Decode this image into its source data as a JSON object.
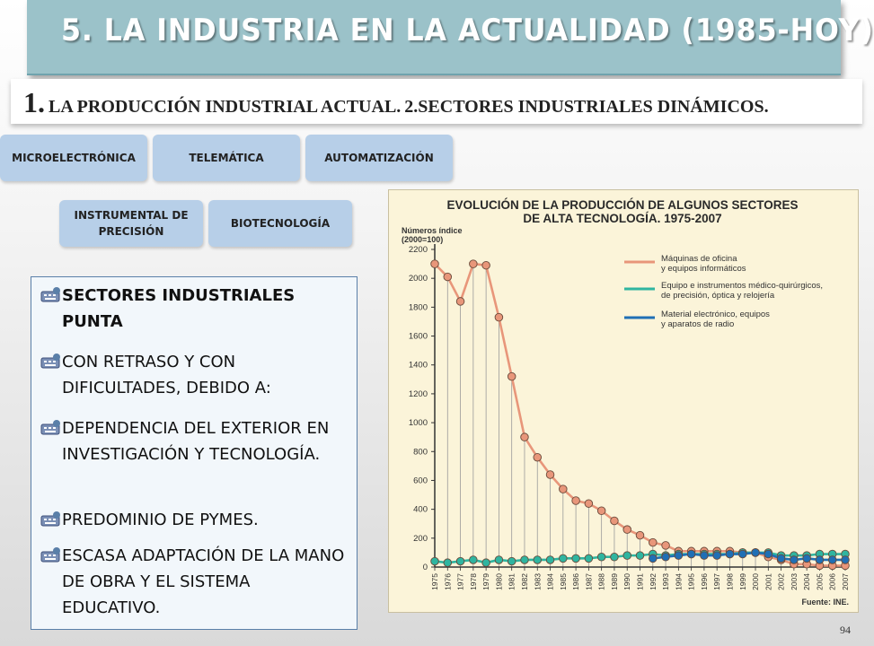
{
  "header": {
    "title": "5. LA INDUSTRIA EN LA ACTUALIDAD (1985-HOY)",
    "subtitle_num": "1.",
    "subtitle_part1": "LA PRODUCCIÓN INDUSTRIAL ACTUAL.",
    "subtitle_part2": "2.SECTORES INDUSTRIALES DINÁMICOS."
  },
  "sectors": [
    {
      "label": "MICROELECTRÓNICA"
    },
    {
      "label": "TELEMÁTICA"
    },
    {
      "label": "AUTOMATIZACIÓN"
    },
    {
      "label": "INSTRUMENTAL DE PRECISIÓN"
    },
    {
      "label": "BIOTECNOLOGÍA"
    }
  ],
  "bullets": [
    {
      "text": "SECTORES INDUSTRIALES PUNTA",
      "icon": "keyboard-icon"
    },
    {
      "text": "CON RETRASO Y CON DIFICULTADES, DEBIDO A:",
      "icon": "keyboard-icon"
    },
    {
      "text": "DEPENDENCIA DEL EXTERIOR EN INVESTIGACIÓN Y TECNOLOGÍA.",
      "icon": "keyboard-icon"
    },
    {
      "text": "PREDOMINIO DE PYMES.",
      "icon": "keyboard-icon"
    },
    {
      "text": "ESCASA ADAPTACIÓN DE LA MANO DE OBRA Y EL SISTEMA EDUCATIVO.",
      "icon": "keyboard-icon"
    }
  ],
  "page_number": "94",
  "chart_data": {
    "type": "line",
    "title": "EVOLUCIÓN DE LA PRODUCCIÓN DE ALGUNOS SECTORES DE ALTA TECNOLOGÍA. 1975-2007",
    "ylabel": "Números índice (2000=100)",
    "source": "Fuente: INE.",
    "ylim": [
      0,
      2200
    ],
    "yticks": [
      0,
      200,
      400,
      600,
      800,
      1000,
      1200,
      1400,
      1600,
      1800,
      2000,
      2200
    ],
    "x": [
      1975,
      1976,
      1977,
      1978,
      1979,
      1980,
      1981,
      1982,
      1983,
      1984,
      1985,
      1986,
      1987,
      1988,
      1989,
      1990,
      1991,
      1992,
      1993,
      1994,
      1995,
      1996,
      1997,
      1998,
      1999,
      2000,
      2001,
      2002,
      2003,
      2004,
      2005,
      2006,
      2007
    ],
    "series": [
      {
        "name": "Máquinas de oficina y equipos informáticos",
        "color": "#e8967a",
        "x": [
          1975,
          1976,
          1977,
          1978,
          1979,
          1980,
          1981,
          1982,
          1983,
          1984,
          1985,
          1986,
          1987,
          1988,
          1989,
          1990,
          1991,
          1992,
          1993,
          1994,
          1995,
          1996,
          1997,
          1998,
          1999,
          2000,
          2001,
          2002,
          2003,
          2004,
          2005,
          2006,
          2007
        ],
        "values": [
          2100,
          2010,
          1840,
          2100,
          2090,
          1730,
          1320,
          900,
          760,
          640,
          540,
          460,
          440,
          390,
          320,
          260,
          220,
          170,
          150,
          110,
          110,
          110,
          110,
          110,
          100,
          100,
          70,
          50,
          20,
          20,
          10,
          10,
          10
        ]
      },
      {
        "name": "Equipo e instrumentos médico-quirúrgicos, de precisión, óptica y relojería",
        "color": "#2fb5a0",
        "x": [
          1975,
          1976,
          1977,
          1978,
          1979,
          1980,
          1981,
          1982,
          1983,
          1984,
          1985,
          1986,
          1987,
          1988,
          1989,
          1990,
          1991,
          1992,
          1993,
          1994,
          1995,
          1996,
          1997,
          1998,
          1999,
          2000,
          2001,
          2002,
          2003,
          2004,
          2005,
          2006,
          2007
        ],
        "values": [
          40,
          30,
          40,
          50,
          30,
          50,
          40,
          50,
          50,
          50,
          60,
          60,
          60,
          70,
          70,
          80,
          80,
          90,
          80,
          90,
          90,
          90,
          90,
          90,
          100,
          100,
          100,
          80,
          80,
          80,
          90,
          90,
          90
        ]
      },
      {
        "name": "Material electrónico, equipos y aparatos de radio",
        "color": "#1f6fb5",
        "x": [
          1992,
          1993,
          1994,
          1995,
          1996,
          1997,
          1998,
          1999,
          2000,
          2001,
          2002,
          2003,
          2004,
          2005,
          2006,
          2007
        ],
        "values": [
          60,
          70,
          80,
          90,
          80,
          80,
          90,
          90,
          100,
          90,
          60,
          50,
          60,
          50,
          50,
          50
        ]
      }
    ],
    "grid": false,
    "legend": "top-right"
  }
}
